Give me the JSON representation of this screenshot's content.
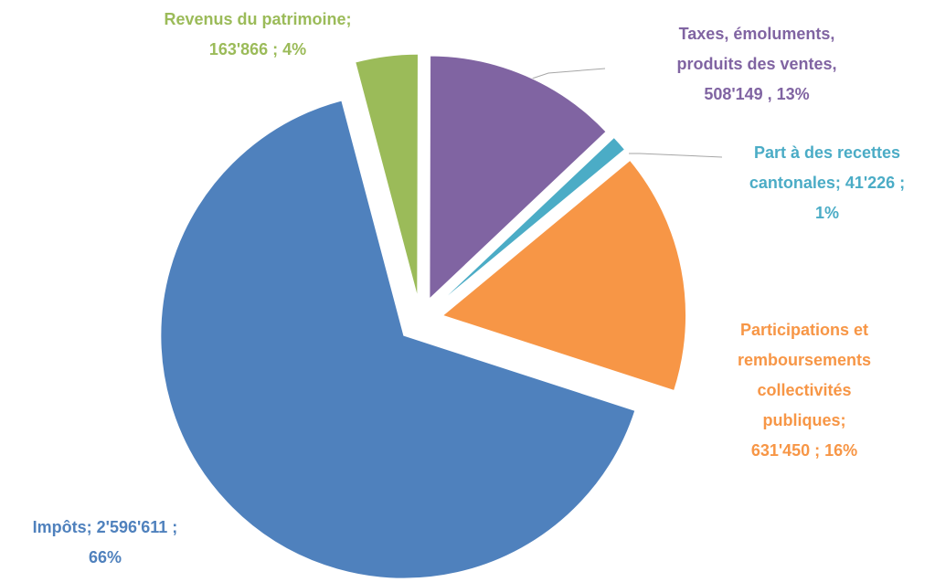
{
  "chart_data": {
    "type": "pie",
    "categories": [
      "Impôts",
      "Revenus du patrimoine",
      "Taxes, émoluments, produits des ventes",
      "Part à des recettes cantonales",
      "Participations et remboursements collectivités publiques"
    ],
    "values": [
      2596611,
      163866,
      508149,
      41226,
      631450
    ],
    "value_labels": [
      [
        "Impôts; 2'596'611 ;",
        "66%"
      ],
      [
        "Revenus du patrimoine;",
        "163'866 ; 4%"
      ],
      [
        "Taxes, émoluments,",
        "produits des ventes,",
        "508'149 , 13%"
      ],
      [
        "Part à des recettes",
        "cantonales; 41'226 ;",
        "1%"
      ],
      [
        "Participations et",
        "remboursements",
        "collectivités",
        "publiques;",
        "631'450 ; 16%"
      ]
    ],
    "colors": [
      "#4f81bd",
      "#9bbb59",
      "#8064a2",
      "#4bacc6",
      "#f79646"
    ]
  }
}
